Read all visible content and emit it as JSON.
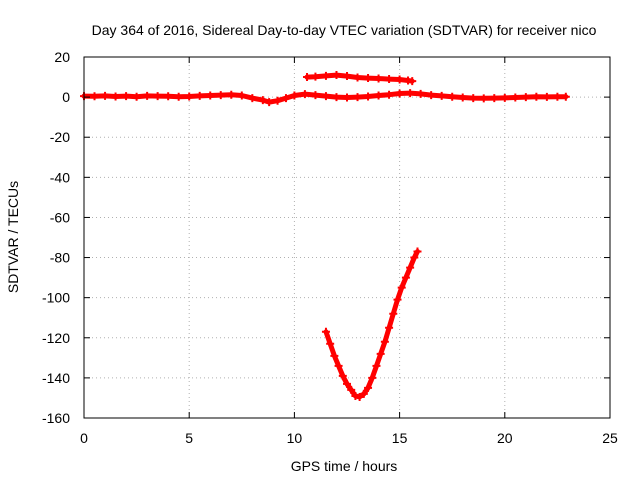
{
  "chart_data": {
    "type": "scatter",
    "title": "Day 364 of 2016, Sidereal Day-to-day VTEC variation (SDTVAR) for receiver nico",
    "xlabel": "GPS time / hours",
    "ylabel": "SDTVAR / TECUs",
    "xlim": [
      0,
      25
    ],
    "ylim": [
      -160,
      20
    ],
    "xticks": [
      "0",
      "5",
      "10",
      "15",
      "20",
      "25"
    ],
    "yticks": [
      "20",
      "0",
      "-20",
      "-40",
      "-60",
      "-80",
      "-100",
      "-120",
      "-140",
      "-160"
    ],
    "grid": true,
    "color": "#ff0000",
    "series": [
      {
        "points": [
          [
            0.0,
            0.5
          ],
          [
            0.5,
            0.4
          ],
          [
            1.0,
            0.6
          ],
          [
            1.5,
            0.3
          ],
          [
            2.0,
            0.5
          ],
          [
            2.5,
            0.2
          ],
          [
            3.0,
            0.6
          ],
          [
            3.5,
            0.5
          ],
          [
            4.0,
            0.4
          ],
          [
            4.5,
            0.2
          ],
          [
            5.0,
            0.3
          ],
          [
            5.5,
            0.6
          ],
          [
            6.0,
            0.8
          ],
          [
            6.5,
            1.0
          ],
          [
            7.0,
            1.2
          ],
          [
            7.5,
            0.8
          ],
          [
            8.0,
            -0.5
          ],
          [
            8.5,
            -1.5
          ],
          [
            8.8,
            -2.5
          ],
          [
            9.2,
            -1.8
          ],
          [
            9.6,
            -0.5
          ],
          [
            10.0,
            0.8
          ],
          [
            10.5,
            1.5
          ],
          [
            11.0,
            1.0
          ],
          [
            11.5,
            0.5
          ],
          [
            12.0,
            0.0
          ],
          [
            12.5,
            -0.2
          ],
          [
            13.0,
            0.0
          ],
          [
            13.5,
            0.3
          ],
          [
            14.0,
            0.8
          ],
          [
            14.5,
            1.2
          ],
          [
            15.0,
            1.8
          ],
          [
            15.5,
            2.0
          ],
          [
            16.0,
            1.6
          ],
          [
            16.5,
            1.0
          ],
          [
            17.0,
            0.6
          ],
          [
            17.5,
            0.2
          ],
          [
            18.0,
            -0.2
          ],
          [
            18.5,
            -0.5
          ],
          [
            19.0,
            -0.6
          ],
          [
            19.5,
            -0.5
          ],
          [
            20.0,
            -0.4
          ],
          [
            20.5,
            -0.2
          ],
          [
            21.0,
            0.0
          ],
          [
            21.5,
            0.2
          ],
          [
            22.0,
            0.1
          ],
          [
            22.5,
            0.2
          ],
          [
            22.9,
            0.2
          ]
        ]
      },
      {
        "points": [
          [
            10.6,
            10.0
          ],
          [
            11.0,
            10.2
          ],
          [
            11.5,
            10.6
          ],
          [
            12.0,
            11.0
          ],
          [
            12.5,
            10.5
          ],
          [
            13.0,
            9.8
          ],
          [
            13.5,
            9.5
          ],
          [
            14.0,
            9.3
          ],
          [
            14.5,
            9.0
          ],
          [
            15.0,
            8.8
          ],
          [
            15.4,
            8.3
          ],
          [
            15.6,
            8.0
          ]
        ]
      },
      {
        "points": [
          [
            11.5,
            -117
          ],
          [
            11.7,
            -123
          ],
          [
            11.9,
            -129
          ],
          [
            12.1,
            -134
          ],
          [
            12.3,
            -139
          ],
          [
            12.5,
            -143
          ],
          [
            12.7,
            -146
          ],
          [
            12.9,
            -149
          ],
          [
            13.1,
            -149.5
          ],
          [
            13.3,
            -148
          ],
          [
            13.5,
            -145
          ],
          [
            13.7,
            -140
          ],
          [
            13.9,
            -134
          ],
          [
            14.1,
            -128
          ],
          [
            14.3,
            -122
          ],
          [
            14.5,
            -115
          ],
          [
            14.7,
            -108
          ],
          [
            14.9,
            -101
          ],
          [
            15.1,
            -95
          ],
          [
            15.3,
            -90
          ],
          [
            15.5,
            -85
          ],
          [
            15.7,
            -80
          ],
          [
            15.85,
            -77
          ]
        ]
      }
    ]
  }
}
